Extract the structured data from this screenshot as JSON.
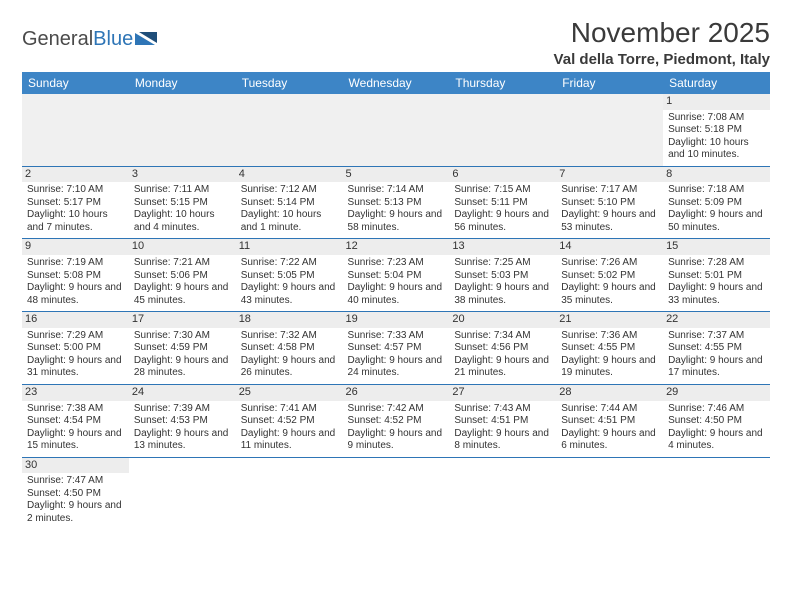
{
  "logo": {
    "text1": "General",
    "text2": "Blue"
  },
  "title": "November 2025",
  "location": "Val della Torre, Piedmont, Italy",
  "colors": {
    "header_bg": "#3d85c6",
    "header_text": "#ffffff",
    "daynum_bg": "#ededed",
    "border": "#2e75b6",
    "text": "#333333"
  },
  "weekdays": [
    "Sunday",
    "Monday",
    "Tuesday",
    "Wednesday",
    "Thursday",
    "Friday",
    "Saturday"
  ],
  "days": {
    "1": {
      "sr": "7:08 AM",
      "ss": "5:18 PM",
      "dl": "10 hours and 10 minutes."
    },
    "2": {
      "sr": "7:10 AM",
      "ss": "5:17 PM",
      "dl": "10 hours and 7 minutes."
    },
    "3": {
      "sr": "7:11 AM",
      "ss": "5:15 PM",
      "dl": "10 hours and 4 minutes."
    },
    "4": {
      "sr": "7:12 AM",
      "ss": "5:14 PM",
      "dl": "10 hours and 1 minute."
    },
    "5": {
      "sr": "7:14 AM",
      "ss": "5:13 PM",
      "dl": "9 hours and 58 minutes."
    },
    "6": {
      "sr": "7:15 AM",
      "ss": "5:11 PM",
      "dl": "9 hours and 56 minutes."
    },
    "7": {
      "sr": "7:17 AM",
      "ss": "5:10 PM",
      "dl": "9 hours and 53 minutes."
    },
    "8": {
      "sr": "7:18 AM",
      "ss": "5:09 PM",
      "dl": "9 hours and 50 minutes."
    },
    "9": {
      "sr": "7:19 AM",
      "ss": "5:08 PM",
      "dl": "9 hours and 48 minutes."
    },
    "10": {
      "sr": "7:21 AM",
      "ss": "5:06 PM",
      "dl": "9 hours and 45 minutes."
    },
    "11": {
      "sr": "7:22 AM",
      "ss": "5:05 PM",
      "dl": "9 hours and 43 minutes."
    },
    "12": {
      "sr": "7:23 AM",
      "ss": "5:04 PM",
      "dl": "9 hours and 40 minutes."
    },
    "13": {
      "sr": "7:25 AM",
      "ss": "5:03 PM",
      "dl": "9 hours and 38 minutes."
    },
    "14": {
      "sr": "7:26 AM",
      "ss": "5:02 PM",
      "dl": "9 hours and 35 minutes."
    },
    "15": {
      "sr": "7:28 AM",
      "ss": "5:01 PM",
      "dl": "9 hours and 33 minutes."
    },
    "16": {
      "sr": "7:29 AM",
      "ss": "5:00 PM",
      "dl": "9 hours and 31 minutes."
    },
    "17": {
      "sr": "7:30 AM",
      "ss": "4:59 PM",
      "dl": "9 hours and 28 minutes."
    },
    "18": {
      "sr": "7:32 AM",
      "ss": "4:58 PM",
      "dl": "9 hours and 26 minutes."
    },
    "19": {
      "sr": "7:33 AM",
      "ss": "4:57 PM",
      "dl": "9 hours and 24 minutes."
    },
    "20": {
      "sr": "7:34 AM",
      "ss": "4:56 PM",
      "dl": "9 hours and 21 minutes."
    },
    "21": {
      "sr": "7:36 AM",
      "ss": "4:55 PM",
      "dl": "9 hours and 19 minutes."
    },
    "22": {
      "sr": "7:37 AM",
      "ss": "4:55 PM",
      "dl": "9 hours and 17 minutes."
    },
    "23": {
      "sr": "7:38 AM",
      "ss": "4:54 PM",
      "dl": "9 hours and 15 minutes."
    },
    "24": {
      "sr": "7:39 AM",
      "ss": "4:53 PM",
      "dl": "9 hours and 13 minutes."
    },
    "25": {
      "sr": "7:41 AM",
      "ss": "4:52 PM",
      "dl": "9 hours and 11 minutes."
    },
    "26": {
      "sr": "7:42 AM",
      "ss": "4:52 PM",
      "dl": "9 hours and 9 minutes."
    },
    "27": {
      "sr": "7:43 AM",
      "ss": "4:51 PM",
      "dl": "9 hours and 8 minutes."
    },
    "28": {
      "sr": "7:44 AM",
      "ss": "4:51 PM",
      "dl": "9 hours and 6 minutes."
    },
    "29": {
      "sr": "7:46 AM",
      "ss": "4:50 PM",
      "dl": "9 hours and 4 minutes."
    },
    "30": {
      "sr": "7:47 AM",
      "ss": "4:50 PM",
      "dl": "9 hours and 2 minutes."
    }
  },
  "grid": [
    [
      null,
      null,
      null,
      null,
      null,
      null,
      "1"
    ],
    [
      "2",
      "3",
      "4",
      "5",
      "6",
      "7",
      "8"
    ],
    [
      "9",
      "10",
      "11",
      "12",
      "13",
      "14",
      "15"
    ],
    [
      "16",
      "17",
      "18",
      "19",
      "20",
      "21",
      "22"
    ],
    [
      "23",
      "24",
      "25",
      "26",
      "27",
      "28",
      "29"
    ],
    [
      "30",
      null,
      null,
      null,
      null,
      null,
      null
    ]
  ],
  "labels": {
    "sunrise": "Sunrise:",
    "sunset": "Sunset:",
    "daylight": "Daylight:"
  }
}
